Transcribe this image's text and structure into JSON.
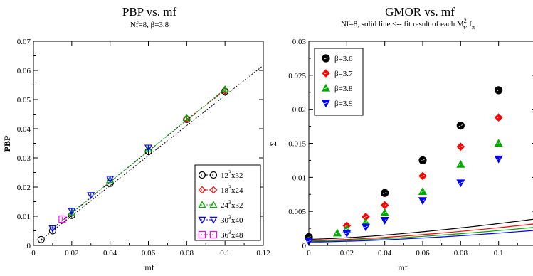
{
  "chart_data": [
    {
      "type": "scatter",
      "title": "PBP vs. mf",
      "subtitle": "Nf=8, β=3.8",
      "xlabel": "mf",
      "ylabel": "PBP",
      "xlim": [
        0,
        0.12
      ],
      "ylim": [
        0,
        0.07
      ],
      "xticks": [
        "0",
        "0.02",
        "0.04",
        "0.06",
        "0.08",
        "0.1",
        "0.12"
      ],
      "yticks": [
        "0",
        "0.01",
        "0.02",
        "0.03",
        "0.04",
        "0.05",
        "0.06",
        "0.07"
      ],
      "grid": false,
      "legend_position": "bottom-right",
      "series": [
        {
          "name": "12",
          "name_sup": "3",
          "name_rest": "x32",
          "marker": "circle",
          "color": "#000000",
          "x": [
            0.004,
            0.01,
            0.02,
            0.04,
            0.06,
            0.08,
            0.1
          ],
          "y": [
            0.002,
            0.005,
            0.0103,
            0.0213,
            0.0322,
            0.0432,
            0.0528
          ]
        },
        {
          "name": "18",
          "name_sup": "3",
          "name_rest": "x24",
          "marker": "diamond",
          "color": "#ff0000",
          "x": [
            0.08,
            0.1
          ],
          "y": [
            0.0433,
            0.053
          ]
        },
        {
          "name": "24",
          "name_sup": "3",
          "name_rest": "x32",
          "marker": "triangle-up",
          "color": "#00aa00",
          "x": [
            0.02,
            0.04,
            0.06,
            0.08,
            0.1
          ],
          "y": [
            0.0113,
            0.0225,
            0.033,
            0.0438,
            0.0535
          ]
        },
        {
          "name": "30",
          "name_sup": "3",
          "name_rest": "x40",
          "marker": "triangle-down",
          "color": "#0000ff",
          "x": [
            0.01,
            0.02,
            0.03,
            0.04,
            0.06
          ],
          "y": [
            0.0058,
            0.0118,
            0.0172,
            0.0228,
            0.0335
          ]
        },
        {
          "name": "36",
          "name_sup": "3",
          "name_rest": "x48",
          "marker": "square",
          "color": "#ff00ff",
          "x": [
            0.015
          ],
          "y": [
            0.009
          ]
        }
      ],
      "fit_lines": [
        {
          "color": "#000000",
          "x": [
            0.004,
            0.12
          ],
          "y": [
            0.0019,
            0.0617
          ]
        },
        {
          "color": "#000000",
          "x": [
            0.01,
            0.1
          ],
          "y": [
            0.0058,
            0.0535
          ]
        },
        {
          "color": "#ff0000",
          "x": [
            0.08,
            0.1
          ],
          "y": [
            0.0433,
            0.053
          ]
        },
        {
          "color": "#00aa00",
          "x": [
            0.02,
            0.1
          ],
          "y": [
            0.0113,
            0.0535
          ]
        }
      ]
    },
    {
      "type": "scatter",
      "title": "GMOR vs. mf",
      "subtitle": "Nf=8, solid line <-- fit result of each M",
      "subtitle_sup": "2",
      "subtitle_sub": "π",
      "subtitle_tail": ", f",
      "subtitle_tail_sub": "π",
      "xlabel": "mf",
      "ylabel": "Σ",
      "xlim": [
        0,
        0.12
      ],
      "ylim": [
        0,
        0.03
      ],
      "xticks": [
        "0",
        "0.02",
        "0.04",
        "0.06",
        "0.08",
        "0.1"
      ],
      "yticks": [
        "0",
        "0.005",
        "0.01",
        "0.015",
        "0.02",
        "0.025",
        "0.03"
      ],
      "grid": false,
      "legend_position": "top-left",
      "series": [
        {
          "name": "β=3.6",
          "marker": "circle",
          "color": "#000000",
          "x": [
            0,
            0.04,
            0.06,
            0.08,
            0.1
          ],
          "y": [
            0.0012,
            0.0077,
            0.0125,
            0.0176,
            0.0228
          ],
          "fit": [
            0.0009,
            0.065,
            1.45
          ]
        },
        {
          "name": "β=3.7",
          "marker": "diamond",
          "color": "#ff0000",
          "x": [
            0.02,
            0.03,
            0.04,
            0.06,
            0.08,
            0.1
          ],
          "y": [
            0.0029,
            0.0042,
            0.0059,
            0.0102,
            0.0145,
            0.0188
          ],
          "fit": [
            0.0007,
            0.06,
            1.5
          ]
        },
        {
          "name": "β=3.8",
          "marker": "triangle-up",
          "color": "#00aa00",
          "x": [
            0.015,
            0.02,
            0.03,
            0.04,
            0.06,
            0.08,
            0.1
          ],
          "y": [
            0.0018,
            0.0024,
            0.0034,
            0.0048,
            0.0079,
            0.0119,
            0.015
          ],
          "fit": [
            0.0006,
            0.052,
            1.52
          ]
        },
        {
          "name": "β=3.9",
          "marker": "triangle-down",
          "color": "#0000ff",
          "x": [
            0,
            0.02,
            0.03,
            0.04,
            0.06,
            0.08,
            0.1
          ],
          "y": [
            0.0006,
            0.0018,
            0.0027,
            0.0037,
            0.0066,
            0.0092,
            0.0127
          ],
          "fit": [
            0.0005,
            0.046,
            1.55
          ]
        }
      ]
    }
  ]
}
